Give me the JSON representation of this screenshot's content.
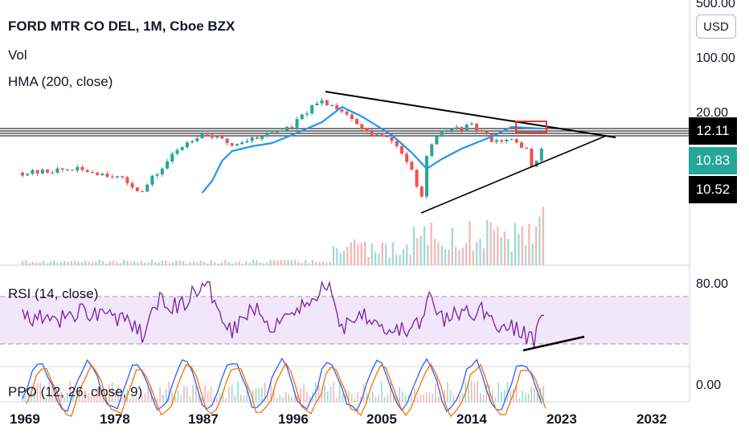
{
  "legend": {
    "title": "FORD MTR CO DEL, 1M, Cboe BZX",
    "vol": "Vol",
    "hma": "HMA (200, close)",
    "rsi": "RSI (14, close)",
    "ppo": "PPO (12, 26, close, 9)"
  },
  "currency": "USD",
  "price_axis": {
    "labels": [
      "500.00",
      "100.00",
      "20.00"
    ],
    "tags": [
      {
        "value": "12.11",
        "bg": "#000000"
      },
      {
        "value": "10.83",
        "bg": "#26a69a"
      },
      {
        "value": "10.52",
        "bg": "#000000"
      }
    ]
  },
  "rsi_axis": {
    "label": "80.00"
  },
  "ppo_axis": {
    "label": "0.00"
  },
  "time_axis": [
    "1969",
    "1978",
    "1987",
    "1996",
    "2005",
    "2014",
    "2023",
    "2032"
  ],
  "colors": {
    "up": "#26a69a",
    "down": "#ef5350",
    "hma": "#2196f3",
    "rsi": "#7b1fa2",
    "rsi_band": "#f1e6fa",
    "trend": "#000000",
    "box": "#e53935",
    "macd": "#2962ff",
    "signal": "#ff6d00"
  },
  "chart_data": {
    "type": "line",
    "title": "FORD MTR CO DEL, 1M, Cboe BZX",
    "y_scale": "log",
    "x": [
      1970,
      1974,
      1978,
      1981,
      1983,
      1987,
      1990,
      1993,
      1996,
      1999,
      2001,
      2003,
      2006,
      2008.9,
      2009.5,
      2011,
      2014,
      2016,
      2018,
      2019.5,
      2020.2,
      2021,
      2021.4
    ],
    "series": [
      {
        "name": "",
        "values": [
          4.6,
          5.1,
          4.3,
          2.6,
          5.2,
          14.6,
          10.2,
          13.5,
          17.2,
          36.0,
          28.0,
          15.5,
          11.5,
          1.6,
          7.0,
          15.0,
          17.5,
          12.0,
          11.5,
          9.0,
          4.0,
          9.5,
          12.1
        ]
      }
    ],
    "price_tags": [
      12.11,
      10.83,
      10.52
    ],
    "rsi": {
      "x": [
        1969,
        1972,
        1975,
        1978,
        1981,
        1983,
        1984.5,
        1986,
        1987.5,
        1990,
        1992,
        1994,
        1996,
        1998,
        1999.5,
        2001,
        2003,
        2006,
        2008.9,
        2009.8,
        2011,
        2013,
        2015,
        2017,
        2019,
        2020.2,
        2020.8,
        2021.4
      ],
      "values": [
        55,
        48,
        58,
        55,
        38,
        70,
        60,
        72,
        78,
        42,
        62,
        45,
        60,
        64,
        82,
        44,
        58,
        40,
        46,
        70,
        50,
        56,
        58,
        45,
        40,
        32,
        48,
        66
      ],
      "band": [
        30,
        70
      ],
      "label": "80.00"
    }
  }
}
